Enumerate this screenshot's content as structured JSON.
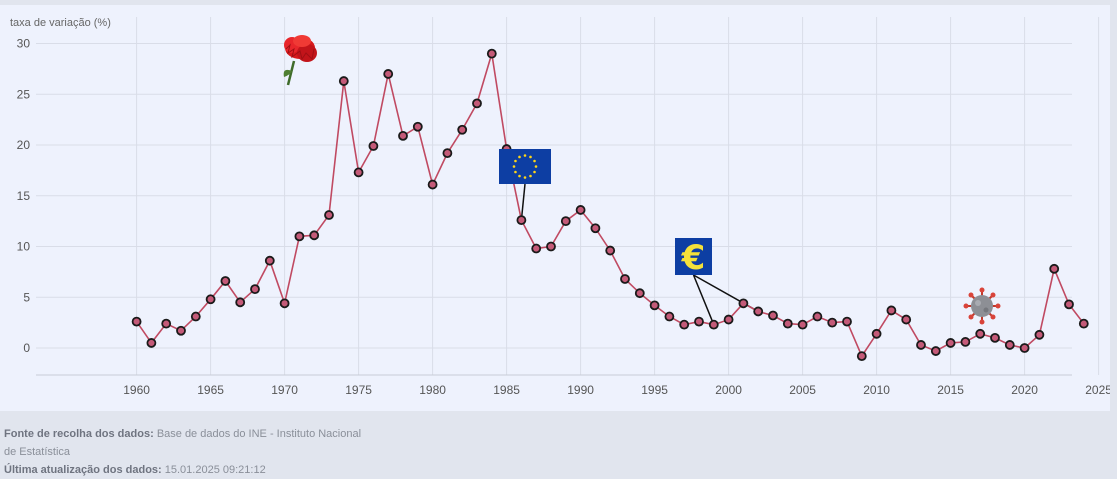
{
  "chart_data": {
    "type": "line",
    "ylabel": "taxa de variação (%)",
    "xlim": [
      1955,
      2028
    ],
    "ylim": [
      -2.5,
      32
    ],
    "x_ticks": [
      1960,
      1965,
      1970,
      1975,
      1980,
      1985,
      1990,
      1995,
      2000,
      2005,
      2010,
      2015,
      2020,
      2025
    ],
    "y_ticks": [
      0,
      5,
      10,
      15,
      20,
      25,
      30
    ],
    "grid": true,
    "line_color": "#c04a62",
    "marker_fill": "#c45a78",
    "marker_stroke": "#1a1a1a",
    "x": [
      1960,
      1961,
      1962,
      1963,
      1964,
      1965,
      1966,
      1967,
      1968,
      1969,
      1970,
      1971,
      1972,
      1973,
      1974,
      1975,
      1976,
      1977,
      1978,
      1979,
      1980,
      1981,
      1982,
      1983,
      1984,
      1985,
      1986,
      1987,
      1988,
      1989,
      1990,
      1991,
      1992,
      1993,
      1994,
      1995,
      1996,
      1997,
      1998,
      1999,
      2000,
      2001,
      2002,
      2003,
      2004,
      2005,
      2006,
      2007,
      2008,
      2009,
      2010,
      2011,
      2012,
      2013,
      2014,
      2015,
      2016,
      2017,
      2018,
      2019,
      2020,
      2021,
      2022,
      2023,
      2024
    ],
    "values": [
      2.6,
      0.5,
      2.4,
      1.7,
      3.1,
      4.8,
      6.6,
      4.5,
      5.8,
      8.6,
      4.4,
      11.0,
      11.1,
      13.1,
      26.3,
      17.3,
      19.9,
      27.0,
      20.9,
      21.8,
      16.1,
      19.2,
      21.5,
      24.1,
      29.0,
      19.6,
      12.6,
      9.8,
      10.0,
      12.5,
      13.6,
      11.8,
      9.6,
      6.8,
      5.4,
      4.2,
      3.1,
      2.3,
      2.6,
      2.3,
      2.8,
      4.4,
      3.6,
      3.2,
      2.4,
      2.3,
      3.1,
      2.5,
      2.6,
      -0.8,
      1.4,
      3.7,
      2.8,
      0.3,
      -0.3,
      0.5,
      0.6,
      1.4,
      1.0,
      0.3,
      0.0,
      1.3,
      7.8,
      4.3,
      2.4
    ],
    "annotations": [
      {
        "icon": "carnation-icon",
        "year": 1974
      },
      {
        "icon": "eu-flag-icon",
        "year": 1986
      },
      {
        "icon": "euro-sign-icon",
        "year": 1999,
        "year_end": 2002
      },
      {
        "icon": "covid-virus-icon",
        "year": 2020
      },
      {
        "euro_symbol": "€"
      }
    ]
  },
  "footer": {
    "source_label": "Fonte de recolha dos dados:",
    "source_text": "Base de dados do INE - Instituto Nacional de Estatística",
    "update_label": "Última atualização dos dados:",
    "update_text": "15.01.2025 09:21:12"
  }
}
